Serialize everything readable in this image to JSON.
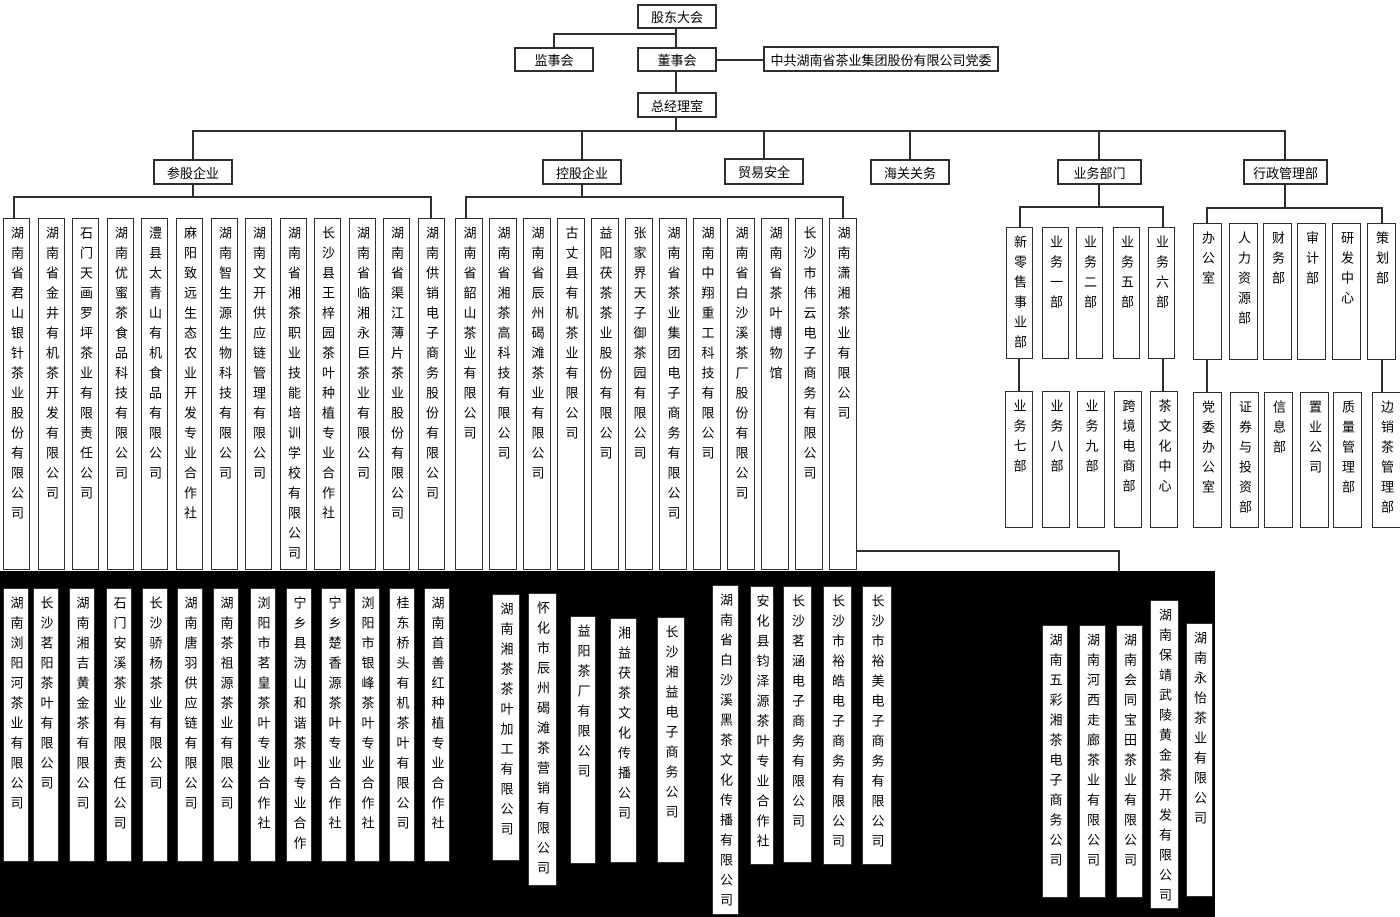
{
  "org": {
    "top": {
      "shareholders": "股东大会",
      "supervisory_board": "监事会",
      "board_of_directors": "董事会",
      "party_committee": "中共湖南省茶业集团股份有限公司党委",
      "gm_office": "总经理室"
    },
    "branches": [
      {
        "label": "参股企业"
      },
      {
        "label": "控股企业"
      },
      {
        "label": "贸易安全"
      },
      {
        "label": "海关关务"
      },
      {
        "label": "业务部门"
      },
      {
        "label": "行政管理部"
      }
    ],
    "groups": {
      "canggu": {
        "label": "参股企业",
        "items": [
          "湖南省君山银针茶业股份有限公司",
          "湖南省金井有机茶开发有限公司",
          "石门天画罗坪茶业有限责任公司",
          "湖南优蜜茶食品科技有限公司",
          "澧县太青山有机食品有限公司",
          "麻阳致远生态农业开发专业合作社",
          "湖南智生源生物科技有限公司",
          "湖南文开供应链管理有限公司",
          "湖南省湘茶职业技能培训学校有限公司",
          "长沙县王梓园茶叶种植专业合作社",
          "湖南省临湘永巨茶业有限公司",
          "湖南省渠江薄片茶业股份有限公司",
          "湖南供销电子商务股份有限公司"
        ]
      },
      "konggu": {
        "label": "控股企业",
        "items": [
          "湖南省韶山茶业有限公司",
          "湖南省湘茶高科技有限公司",
          "湖南省辰州碣滩茶业有限公司",
          "古丈县有机茶业有限公司",
          "益阳茯茶茶业股份有限公司",
          "张家界天子御茶园有限公司",
          "湖南省茶业集团电子商务有限公司",
          "湖南中翔重工科技有限公司",
          "湖南省白沙溪茶厂股份有限公司",
          "湖南省茶叶博物馆",
          "长沙市伟云电子商务有限公司",
          "湖南潇湘茶业有限公司"
        ]
      },
      "business": {
        "label": "业务部门",
        "row1": [
          "新零售事业部",
          "业务一部",
          "业务二部",
          "业务五部",
          "业务六部"
        ],
        "row2": [
          "业务七部",
          "业务八部",
          "业务九部",
          "跨境电商部",
          "茶文化中心"
        ]
      },
      "admin": {
        "label": "行政管理部",
        "row1": [
          "办公室",
          "人力资源部",
          "财务部",
          "审计部",
          "研发中心",
          "策划部"
        ],
        "row2": [
          "党委办公室",
          "证券与投资部",
          "信息部",
          "置业公司",
          "质量管理部",
          "边销茶管理部"
        ]
      },
      "subsidiariesA": {
        "items": [
          "湖南浏阳河茶业有限公司",
          "长沙茗阳茶叶有限公司",
          "湖南湘吉黄金茶有限公司",
          "石门安溪茶业有限责任公司",
          "长沙骄杨茶业有限公司",
          "湖南唐羽供应链有限公司",
          "湖南茶祖源茶业有限公司",
          "浏阳市茗皇茶叶专业合作社",
          "宁乡县沩山和谐茶叶专业合作",
          "宁乡楚香源茶叶专业合作社",
          "浏阳市银峰茶叶专业合作社",
          "桂东桥头有机茶叶有限公司",
          "湖南首善红种植专业合作社"
        ]
      },
      "subsidiariesB": {
        "items": [
          "湖南湘茶茶叶加工有限公司",
          "怀化市辰州碣滩茶营销有限公司",
          "益阳茶厂有限公司",
          "湘益茯茶文化传播公司",
          "长沙湘益电子商务公司"
        ]
      },
      "subsidiariesC": {
        "items": [
          "湖南省白沙溪黑茶文化传播有限公司",
          "安化县钧泽源茶叶专业合作社",
          "长沙茗涵电子商务有限公司",
          "长沙市裕皓电子商务有限公司",
          "长沙市裕美电子商务有限公司"
        ]
      },
      "subsidiariesD": {
        "items": [
          "湖南五彩湘茶电子商务公司",
          "湖南河西走廊茶业有限公司",
          "湖南会同宝田茶业有限公司",
          "湖南保靖武陵黄金茶开发有限公司",
          "湖南永怡茶业有限公司"
        ]
      }
    },
    "colors": {
      "line": "#2e2e2e",
      "box_border": "#2e2e2e",
      "box_fill": "#ffffff",
      "blackout": "#000000"
    }
  }
}
